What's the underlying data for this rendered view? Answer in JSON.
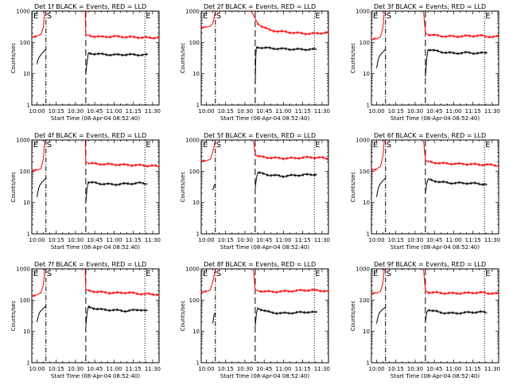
{
  "chart_data": {
    "type": "line",
    "layout": "3x3 grid",
    "xlabel": "Start Time (08-Apr-04 08:52:40)",
    "ylabel": "Counts/sec",
    "y_scale": "log",
    "ylim": [
      1,
      1000
    ],
    "y_ticks": [
      "1",
      "10",
      "100",
      "1000"
    ],
    "x_ticks": [
      "10:00",
      "10:15",
      "10:30",
      "10:45",
      "11:00",
      "11:15",
      "11:30"
    ],
    "xlim_minutes_after_10": [
      -4,
      95
    ],
    "colors": {
      "events": "#000000",
      "lld": "#ff0000"
    },
    "markers": {
      "E": "E",
      "S": "S"
    },
    "vlines": [
      {
        "type": "dash-dot",
        "t": 7
      },
      {
        "type": "dashed",
        "t": 38
      },
      {
        "type": "dotted",
        "t": 84
      }
    ],
    "panels": [
      {
        "title": "Det 1f BLACK = Events, RED = LLD",
        "series": [
          {
            "name": "Events",
            "color": "#000000",
            "segments": [
              {
                "x": [
                  0,
                  1,
                  2,
                  4,
                  6,
                  7
                ],
                "y": [
                  20,
                  30,
                  35,
                  45,
                  55,
                  60
                ]
              },
              {
                "x": [
                  38,
                  39,
                  40,
                  50,
                  60,
                  70,
                  80,
                  86
                ],
                "y": [
                  10,
                  25,
                  45,
                  42,
                  40,
                  41,
                  40,
                  40
                ]
              }
            ]
          },
          {
            "name": "LLD",
            "color": "#ff0000",
            "segments": [
              {
                "x": [
                  -4,
                  0,
                  3,
                  5,
                  6
                ],
                "y": [
                  155,
                  160,
                  180,
                  300,
                  1000
                ]
              },
              {
                "x": [
                  37.5,
                  38,
                  40,
                  50,
                  60,
                  70,
                  80,
                  90,
                  96
                ],
                "y": [
                  1000,
                  180,
                  165,
                  150,
                  155,
                  150,
                  145,
                  140,
                  150
                ]
              }
            ]
          }
        ]
      },
      {
        "title": "Det 2f BLACK = Events, RED = LLD",
        "series": [
          {
            "name": "Events",
            "color": "#000000",
            "segments": [
              {
                "x": [
                  38,
                  38.5,
                  39,
                  40,
                  50,
                  60,
                  70,
                  80,
                  86
                ],
                "y": [
                  5,
                  40,
                  72,
                  70,
                  65,
                  62,
                  60,
                  60,
                  60
                ]
              }
            ]
          },
          {
            "name": "LLD",
            "color": "#ff0000",
            "segments": [
              {
                "x": [
                  -4,
                  0,
                  3,
                  5,
                  7
                ],
                "y": [
                  300,
                  310,
                  330,
                  400,
                  1000
                ]
              },
              {
                "x": [
                  35,
                  40,
                  45,
                  50,
                  55,
                  60,
                  70,
                  80,
                  90,
                  96
                ],
                "y": [
                  1000,
                  400,
                  300,
                  240,
                  230,
                  220,
                  200,
                  190,
                  200,
                  210
                ]
              }
            ]
          }
        ]
      },
      {
        "title": "Det 3f BLACK = Events, RED = LLD",
        "series": [
          {
            "name": "Events",
            "color": "#000000",
            "segments": [
              {
                "x": [
                  0,
                  1,
                  2,
                  4,
                  6,
                  7
                ],
                "y": [
                  15,
                  25,
                  35,
                  45,
                  55,
                  60
                ]
              },
              {
                "x": [
                  38,
                  39,
                  40,
                  50,
                  60,
                  70,
                  80,
                  86
                ],
                "y": [
                  8,
                  30,
                  60,
                  50,
                  45,
                  47,
                  45,
                  48
                ]
              }
            ]
          },
          {
            "name": "LLD",
            "color": "#ff0000",
            "segments": [
              {
                "x": [
                  -4,
                  0,
                  3,
                  5,
                  6
                ],
                "y": [
                  120,
                  130,
                  150,
                  300,
                  1000
                ]
              },
              {
                "x": [
                  36.5,
                  38,
                  40,
                  50,
                  60,
                  70,
                  80,
                  90,
                  96
                ],
                "y": [
                  1000,
                  210,
                  180,
                  160,
                  155,
                  160,
                  165,
                  150,
                  155
                ]
              }
            ]
          }
        ]
      },
      {
        "title": "Det 4f BLACK = Events, RED = LLD",
        "series": [
          {
            "name": "Events",
            "color": "#000000",
            "segments": [
              {
                "x": [
                  0,
                  1,
                  2,
                  4,
                  6,
                  7
                ],
                "y": [
                  15,
                  25,
                  35,
                  45,
                  55,
                  60
                ]
              },
              {
                "x": [
                  38,
                  39,
                  40,
                  50,
                  60,
                  70,
                  80,
                  86
                ],
                "y": [
                  10,
                  30,
                  45,
                  40,
                  38,
                  40,
                  42,
                  40
                ]
              }
            ]
          },
          {
            "name": "LLD",
            "color": "#ff0000",
            "segments": [
              {
                "x": [
                  -4,
                  0,
                  3,
                  5,
                  6
                ],
                "y": [
                  100,
                  110,
                  120,
                  250,
                  1000
                ]
              },
              {
                "x": [
                  37.5,
                  38,
                  40,
                  50,
                  60,
                  70,
                  80,
                  90,
                  96
                ],
                "y": [
                  1000,
                  200,
                  180,
                  170,
                  165,
                  160,
                  155,
                  150,
                  140
                ]
              }
            ]
          }
        ]
      },
      {
        "title": "Det 5f BLACK = Events, RED = LLD",
        "series": [
          {
            "name": "Events",
            "color": "#000000",
            "segments": [
              {
                "x": [
                  5,
                  6,
                  7
                ],
                "y": [
                  25,
                  35,
                  40
                ]
              },
              {
                "x": [
                  38,
                  39,
                  40,
                  50,
                  60,
                  70,
                  80,
                  86
                ],
                "y": [
                  30,
                  60,
                  90,
                  75,
                  70,
                  75,
                  78,
                  80
                ]
              }
            ]
          },
          {
            "name": "LLD",
            "color": "#ff0000",
            "segments": [
              {
                "x": [
                  -4,
                  0,
                  3,
                  5,
                  7
                ],
                "y": [
                  210,
                  220,
                  240,
                  400,
                  1000
                ]
              },
              {
                "x": [
                  36.5,
                  38,
                  40,
                  50,
                  60,
                  70,
                  80,
                  90,
                  96
                ],
                "y": [
                  1000,
                  350,
                  300,
                  270,
                  260,
                  265,
                  280,
                  270,
                  250
                ]
              }
            ]
          }
        ]
      },
      {
        "title": "Det 6f BLACK = Events, RED = LLD",
        "series": [
          {
            "name": "Events",
            "color": "#000000",
            "segments": [
              {
                "x": [
                  0,
                  1,
                  2,
                  4,
                  6,
                  7
                ],
                "y": [
                  15,
                  25,
                  35,
                  45,
                  55,
                  60
                ]
              },
              {
                "x": [
                  38,
                  39,
                  40,
                  50,
                  60,
                  70,
                  80,
                  86
                ],
                "y": [
                  20,
                  40,
                  55,
                  45,
                  42,
                  42,
                  40,
                  38
                ]
              }
            ]
          },
          {
            "name": "LLD",
            "color": "#ff0000",
            "segments": [
              {
                "x": [
                  -4,
                  0,
                  3,
                  5,
                  6
                ],
                "y": [
                  110,
                  120,
                  140,
                  300,
                  1000
                ]
              },
              {
                "x": [
                  36.5,
                  38,
                  40,
                  50,
                  60,
                  70,
                  80,
                  90,
                  96
                ],
                "y": [
                  1000,
                  230,
                  200,
                  180,
                  175,
                  170,
                  165,
                  160,
                  150
                ]
              }
            ]
          }
        ]
      },
      {
        "title": "Det 7f BLACK = Events, RED = LLD",
        "series": [
          {
            "name": "Events",
            "color": "#000000",
            "segments": [
              {
                "x": [
                  0,
                  1,
                  2,
                  4,
                  6,
                  7
                ],
                "y": [
                  20,
                  30,
                  40,
                  50,
                  60,
                  65
                ]
              },
              {
                "x": [
                  38,
                  39,
                  40,
                  50,
                  60,
                  70,
                  80,
                  86
                ],
                "y": [
                  15,
                  40,
                  60,
                  50,
                  48,
                  45,
                  50,
                  45
                ]
              }
            ]
          },
          {
            "name": "LLD",
            "color": "#ff0000",
            "segments": [
              {
                "x": [
                  -4,
                  0,
                  3,
                  5,
                  6
                ],
                "y": [
                  140,
                  150,
                  170,
                  300,
                  1000
                ]
              },
              {
                "x": [
                  37.5,
                  38,
                  40,
                  50,
                  60,
                  70,
                  80,
                  90,
                  96
                ],
                "y": [
                  1000,
                  220,
                  200,
                  180,
                  170,
                  175,
                  160,
                  155,
                  150
                ]
              }
            ]
          }
        ]
      },
      {
        "title": "Det 8f BLACK = Events, RED = LLD",
        "series": [
          {
            "name": "Events",
            "color": "#000000",
            "segments": [
              {
                "x": [
                  5,
                  6,
                  7
                ],
                "y": [
                  18,
                  35,
                  40
                ]
              },
              {
                "x": [
                  38,
                  39,
                  40,
                  50,
                  60,
                  70,
                  80,
                  86
                ],
                "y": [
                  15,
                  40,
                  55,
                  40,
                  38,
                  40,
                  42,
                  40
                ]
              }
            ]
          },
          {
            "name": "LLD",
            "color": "#ff0000",
            "segments": [
              {
                "x": [
                  -4,
                  0,
                  3,
                  5,
                  7
                ],
                "y": [
                  180,
                  190,
                  210,
                  400,
                  1000
                ]
              },
              {
                "x": [
                  36.5,
                  38,
                  40,
                  50,
                  60,
                  70,
                  80,
                  90,
                  96
                ],
                "y": [
                  1000,
                  220,
                  200,
                  185,
                  190,
                  200,
                  210,
                  200,
                  190
                ]
              }
            ]
          }
        ]
      },
      {
        "title": "Det 9f BLACK = Events, RED = LLD",
        "series": [
          {
            "name": "Events",
            "color": "#000000",
            "segments": [
              {
                "x": [
                  0,
                  1,
                  2,
                  4,
                  6,
                  7
                ],
                "y": [
                  18,
                  28,
                  38,
                  48,
                  55,
                  60
                ]
              },
              {
                "x": [
                  38,
                  39,
                  40,
                  50,
                  60,
                  70,
                  80,
                  86
                ],
                "y": [
                  20,
                  40,
                  50,
                  40,
                  38,
                  40,
                  42,
                  40
                ]
              }
            ]
          },
          {
            "name": "LLD",
            "color": "#ff0000",
            "segments": [
              {
                "x": [
                  -4,
                  0,
                  3,
                  5,
                  6
                ],
                "y": [
                  160,
                  170,
                  190,
                  350,
                  1000
                ]
              },
              {
                "x": [
                  36.5,
                  38,
                  40,
                  50,
                  60,
                  70,
                  80,
                  90,
                  96
                ],
                "y": [
                  1000,
                  200,
                  180,
                  170,
                  165,
                  170,
                  175,
                  165,
                  160
                ]
              }
            ]
          }
        ]
      }
    ]
  }
}
